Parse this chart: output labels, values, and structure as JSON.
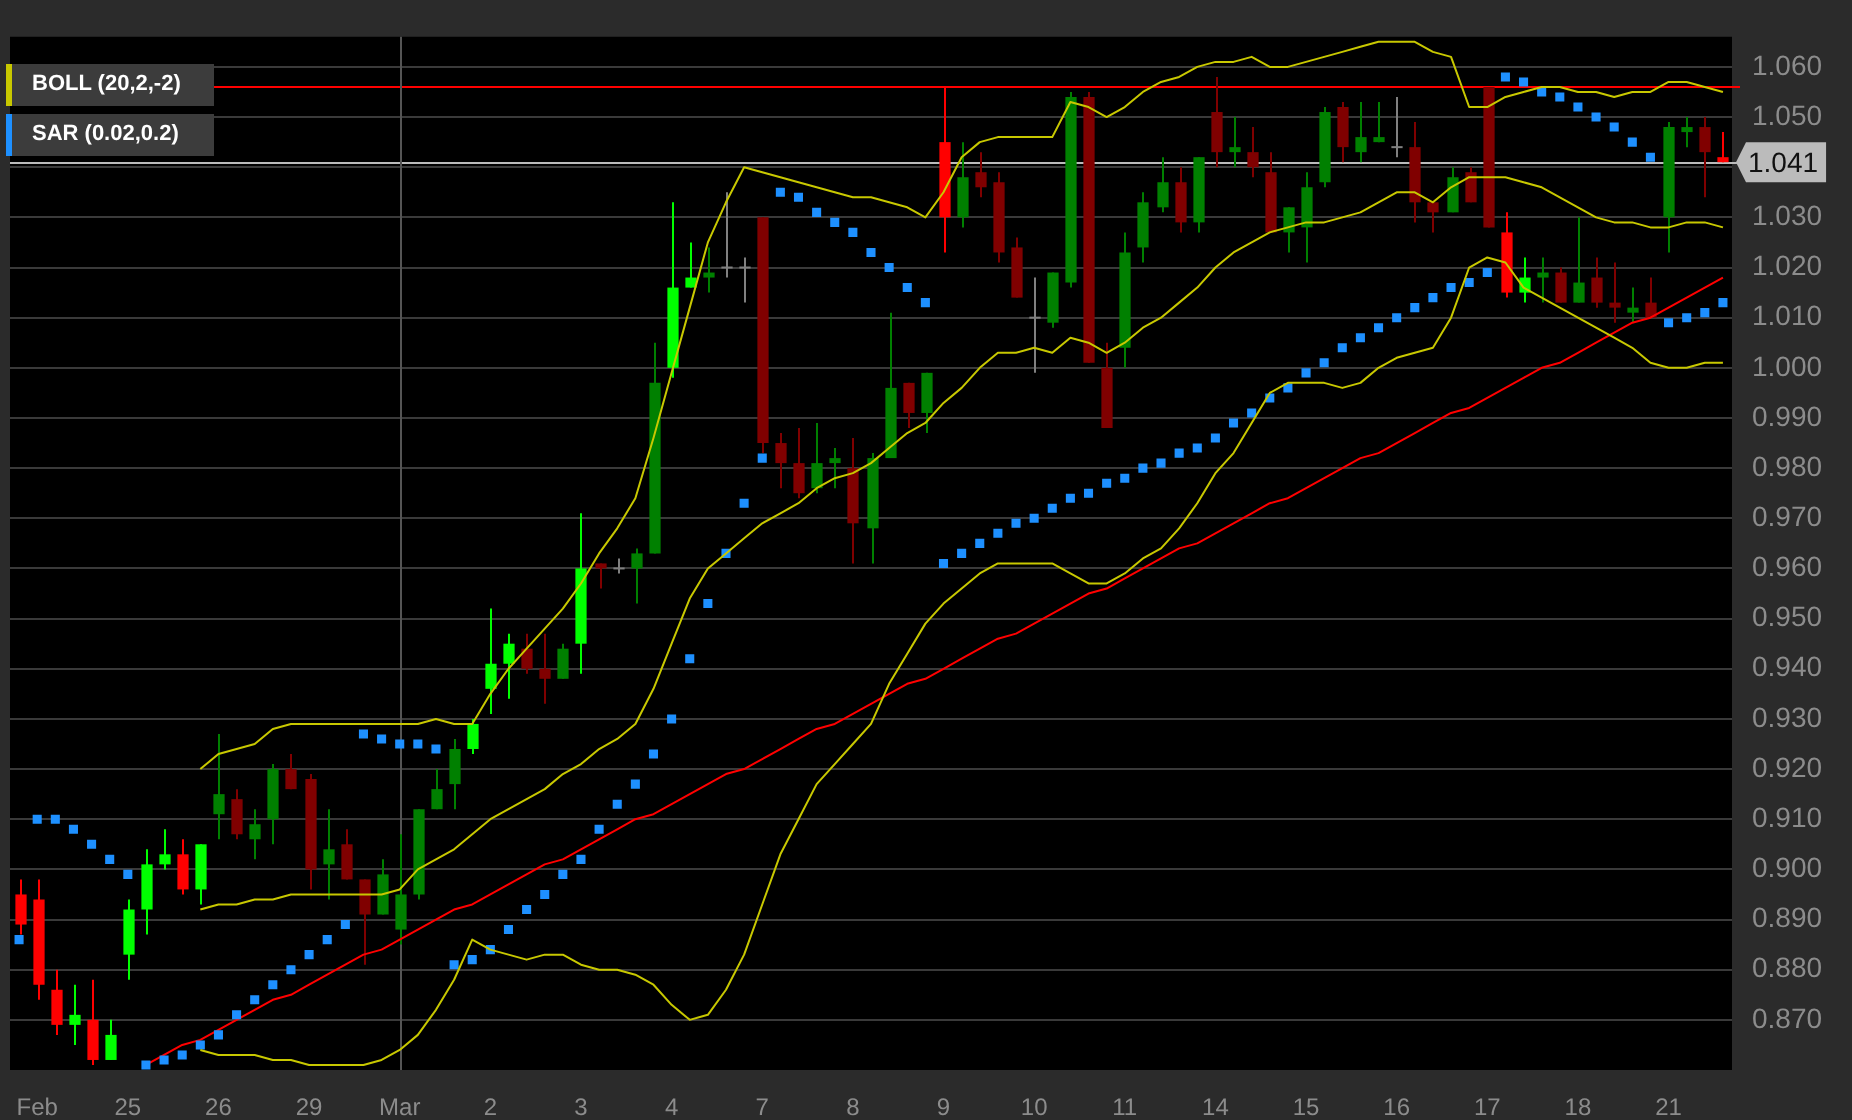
{
  "chart_data": {
    "type": "candlestick",
    "categories": [
      null,
      "Feb",
      null,
      null,
      null,
      null,
      "25",
      null,
      null,
      null,
      null,
      "26",
      null,
      null,
      null,
      null,
      "29",
      null,
      null,
      null,
      null,
      "Mar",
      null,
      null,
      null,
      null,
      "2",
      null,
      null,
      null,
      null,
      "3",
      null,
      null,
      null,
      null,
      "4",
      null,
      null,
      null,
      null,
      "7",
      null,
      null,
      null,
      null,
      "8",
      null,
      null,
      null,
      null,
      "9",
      null,
      null,
      null,
      null,
      "10",
      null,
      null,
      null,
      null,
      "11",
      null,
      null,
      null,
      null,
      "14",
      null,
      null,
      null,
      null,
      "15",
      null,
      null,
      null,
      null,
      "16",
      null,
      null,
      null,
      null,
      "17",
      null,
      null,
      null,
      null,
      "18",
      null,
      null,
      null,
      null,
      "21",
      null,
      null,
      null
    ],
    "ohlc": [
      [
        0.895,
        0.898,
        0.887,
        0.889
      ],
      [
        0.894,
        0.898,
        0.874,
        0.877
      ],
      [
        0.876,
        0.88,
        0.867,
        0.869
      ],
      [
        0.869,
        0.877,
        0.865,
        0.871
      ],
      [
        0.87,
        0.878,
        0.861,
        0.862
      ],
      [
        0.862,
        0.87,
        0.862,
        0.867
      ],
      [
        0.883,
        0.894,
        0.878,
        0.892
      ],
      [
        0.892,
        0.904,
        0.887,
        0.901
      ],
      [
        0.901,
        0.908,
        0.9,
        0.903
      ],
      [
        0.903,
        0.906,
        0.895,
        0.896
      ],
      [
        0.896,
        0.905,
        0.893,
        0.905
      ],
      [
        0.911,
        0.927,
        0.906,
        0.915
      ],
      [
        0.914,
        0.916,
        0.906,
        0.907
      ],
      [
        0.906,
        0.912,
        0.902,
        0.909
      ],
      [
        0.91,
        0.921,
        0.905,
        0.92
      ],
      [
        0.92,
        0.923,
        0.916,
        0.916
      ],
      [
        0.918,
        0.919,
        0.896,
        0.9
      ],
      [
        0.901,
        0.912,
        0.894,
        0.904
      ],
      [
        0.905,
        0.908,
        0.898,
        0.898
      ],
      [
        0.898,
        0.898,
        0.881,
        0.891
      ],
      [
        0.891,
        0.902,
        0.891,
        0.899
      ],
      [
        0.888,
        0.907,
        0.885,
        0.895
      ],
      [
        0.895,
        0.912,
        0.894,
        0.912
      ],
      [
        0.912,
        0.92,
        0.912,
        0.916
      ],
      [
        0.917,
        0.926,
        0.912,
        0.924
      ],
      [
        0.924,
        0.93,
        0.923,
        0.929
      ],
      [
        0.936,
        0.952,
        0.931,
        0.941
      ],
      [
        0.941,
        0.947,
        0.934,
        0.945
      ],
      [
        0.944,
        0.947,
        0.939,
        0.94
      ],
      [
        0.94,
        0.947,
        0.933,
        0.938
      ],
      [
        0.938,
        0.945,
        0.938,
        0.944
      ],
      [
        0.945,
        0.971,
        0.939,
        0.96
      ],
      [
        0.961,
        0.961,
        0.956,
        0.96
      ],
      [
        0.96,
        0.962,
        0.959,
        0.96
      ],
      [
        0.96,
        0.964,
        0.953,
        0.963
      ],
      [
        0.963,
        1.005,
        0.963,
        0.997
      ],
      [
        1.0,
        1.033,
        0.998,
        1.016
      ],
      [
        1.016,
        1.025,
        1.016,
        1.018
      ],
      [
        1.018,
        1.024,
        1.015,
        1.019
      ],
      [
        1.02,
        1.035,
        1.018,
        1.02
      ],
      [
        1.02,
        1.022,
        1.013,
        1.02
      ],
      [
        1.03,
        1.03,
        0.983,
        0.985
      ],
      [
        0.985,
        0.987,
        0.976,
        0.981
      ],
      [
        0.981,
        0.988,
        0.974,
        0.975
      ],
      [
        0.976,
        0.989,
        0.975,
        0.981
      ],
      [
        0.981,
        0.984,
        0.976,
        0.982
      ],
      [
        0.98,
        0.986,
        0.961,
        0.969
      ],
      [
        0.968,
        0.983,
        0.961,
        0.982
      ],
      [
        0.982,
        1.011,
        0.982,
        0.996
      ],
      [
        0.997,
        0.997,
        0.988,
        0.991
      ],
      [
        0.991,
        0.999,
        0.987,
        0.999
      ],
      [
        1.045,
        1.056,
        1.023,
        1.03
      ],
      [
        1.03,
        1.045,
        1.028,
        1.038
      ],
      [
        1.039,
        1.043,
        1.034,
        1.036
      ],
      [
        1.037,
        1.039,
        1.021,
        1.023
      ],
      [
        1.024,
        1.026,
        1.014,
        1.014
      ],
      [
        1.01,
        1.018,
        0.999,
        1.01
      ],
      [
        1.009,
        1.019,
        1.008,
        1.019
      ],
      [
        1.017,
        1.055,
        1.016,
        1.054
      ],
      [
        1.054,
        1.055,
        1.001,
        1.001
      ],
      [
        1.0,
        1.005,
        0.988,
        0.988
      ],
      [
        1.004,
        1.027,
        1.0,
        1.023
      ],
      [
        1.024,
        1.035,
        1.021,
        1.033
      ],
      [
        1.032,
        1.042,
        1.031,
        1.037
      ],
      [
        1.037,
        1.04,
        1.027,
        1.029
      ],
      [
        1.029,
        1.042,
        1.027,
        1.042
      ],
      [
        1.051,
        1.058,
        1.04,
        1.043
      ],
      [
        1.043,
        1.05,
        1.04,
        1.044
      ],
      [
        1.043,
        1.048,
        1.038,
        1.04
      ],
      [
        1.039,
        1.043,
        1.027,
        1.027
      ],
      [
        1.027,
        1.032,
        1.023,
        1.032
      ],
      [
        1.028,
        1.039,
        1.021,
        1.036
      ],
      [
        1.037,
        1.052,
        1.036,
        1.051
      ],
      [
        1.052,
        1.053,
        1.041,
        1.044
      ],
      [
        1.043,
        1.053,
        1.041,
        1.046
      ],
      [
        1.045,
        1.053,
        1.045,
        1.046
      ],
      [
        1.044,
        1.054,
        1.042,
        1.044
      ],
      [
        1.044,
        1.049,
        1.029,
        1.033
      ],
      [
        1.033,
        1.033,
        1.027,
        1.031
      ],
      [
        1.031,
        1.04,
        1.031,
        1.038
      ],
      [
        1.039,
        1.04,
        1.033,
        1.033
      ],
      [
        1.056,
        1.056,
        1.028,
        1.028
      ],
      [
        1.027,
        1.031,
        1.014,
        1.015
      ],
      [
        1.015,
        1.022,
        1.013,
        1.018
      ],
      [
        1.018,
        1.022,
        1.013,
        1.019
      ],
      [
        1.019,
        1.02,
        1.013,
        1.013
      ],
      [
        1.013,
        1.03,
        1.013,
        1.017
      ],
      [
        1.018,
        1.022,
        1.012,
        1.013
      ],
      [
        1.013,
        1.021,
        1.009,
        1.012
      ],
      [
        1.011,
        1.016,
        1.009,
        1.012
      ],
      [
        1.013,
        1.018,
        1.01,
        1.01
      ],
      [
        1.03,
        1.049,
        1.023,
        1.048
      ],
      [
        1.047,
        1.05,
        1.044,
        1.048
      ],
      [
        1.048,
        1.05,
        1.034,
        1.043
      ],
      [
        1.042,
        1.047,
        1.041,
        1.041
      ]
    ],
    "colors": [
      "#ff0000",
      "#ff0000",
      "#ff0000",
      "#00ff00",
      "#ff0000",
      "#00ff00",
      "#00ff00",
      "#00ff00",
      "#00ff00",
      "#ff0000",
      "#00ff00",
      "#008000",
      "#800000",
      "#008000",
      "#008000",
      "#800000",
      "#800000",
      "#008000",
      "#800000",
      "#800000",
      "#008000",
      "#008000",
      "#008000",
      "#008000",
      "#008000",
      "#00ff00",
      "#00ff00",
      "#00ff00",
      "#800000",
      "#800000",
      "#008000",
      "#00ff00",
      "#800000",
      "#808080",
      "#008000",
      "#008000",
      "#00ff00",
      "#00ff00",
      "#008000",
      "#808080",
      "#808080",
      "#800000",
      "#800000",
      "#800000",
      "#008000",
      "#008000",
      "#800000",
      "#008000",
      "#008000",
      "#800000",
      "#008000",
      "#ff0000",
      "#008000",
      "#800000",
      "#800000",
      "#800000",
      "#808080",
      "#008000",
      "#008000",
      "#800000",
      "#800000",
      "#008000",
      "#008000",
      "#008000",
      "#800000",
      "#008000",
      "#800000",
      "#008000",
      "#800000",
      "#800000",
      "#008000",
      "#008000",
      "#008000",
      "#800000",
      "#008000",
      "#008000",
      "#808080",
      "#800000",
      "#800000",
      "#008000",
      "#800000",
      "#800000",
      "#ff0000",
      "#00ff00",
      "#008000",
      "#800000",
      "#008000",
      "#800000",
      "#800000",
      "#008000",
      "#800000",
      "#008000",
      "#008000",
      "#800000",
      "#ff0000"
    ],
    "series": [
      {
        "type": "line",
        "color": "#c8c800",
        "values": [
          null,
          null,
          null,
          null,
          null,
          null,
          null,
          null,
          null,
          null,
          0.92,
          0.923,
          0.924,
          0.925,
          0.928,
          0.929,
          0.929,
          0.929,
          0.929,
          0.929,
          0.929,
          0.929,
          0.929,
          0.93,
          0.929,
          0.929,
          0.935,
          0.94,
          0.944,
          0.948,
          0.952,
          0.957,
          0.963,
          0.968,
          0.974,
          0.986,
          0.999,
          1.012,
          1.025,
          1.033,
          1.04,
          1.039,
          1.038,
          1.037,
          1.036,
          1.035,
          1.034,
          1.034,
          1.033,
          1.032,
          1.03,
          1.035,
          1.042,
          1.045,
          1.046,
          1.046,
          1.046,
          1.046,
          1.053,
          1.052,
          1.05,
          1.052,
          1.055,
          1.057,
          1.058,
          1.06,
          1.061,
          1.061,
          1.062,
          1.06,
          1.06,
          1.061,
          1.062,
          1.063,
          1.064,
          1.065,
          1.065,
          1.065,
          1.063,
          1.062,
          1.052,
          1.052,
          1.054,
          1.055,
          1.056,
          1.056,
          1.055,
          1.055,
          1.054,
          1.055,
          1.055,
          1.057,
          1.057,
          1.056,
          1.055
        ]
      },
      {
        "type": "line",
        "name": "BOLL (20,2,-2)",
        "color": "#c8c800",
        "values": [
          null,
          null,
          null,
          null,
          null,
          null,
          null,
          null,
          null,
          null,
          0.892,
          0.893,
          0.893,
          0.894,
          0.894,
          0.895,
          0.895,
          0.895,
          0.895,
          0.895,
          0.895,
          0.896,
          0.9,
          0.902,
          0.904,
          0.907,
          0.91,
          0.912,
          0.914,
          0.916,
          0.919,
          0.921,
          0.924,
          0.926,
          0.929,
          0.936,
          0.945,
          0.954,
          0.96,
          0.963,
          0.966,
          0.969,
          0.971,
          0.973,
          0.976,
          0.978,
          0.979,
          0.981,
          0.984,
          0.987,
          0.989,
          0.993,
          0.996,
          1.0,
          1.003,
          1.003,
          1.004,
          1.003,
          1.006,
          1.005,
          1.003,
          1.005,
          1.008,
          1.01,
          1.013,
          1.016,
          1.02,
          1.023,
          1.025,
          1.027,
          1.028,
          1.029,
          1.029,
          1.03,
          1.031,
          1.033,
          1.035,
          1.035,
          1.033,
          1.036,
          1.038,
          1.038,
          1.038,
          1.037,
          1.036,
          1.034,
          1.032,
          1.03,
          1.029,
          1.029,
          1.028,
          1.028,
          1.029,
          1.029,
          1.028
        ]
      },
      {
        "type": "line",
        "color": "#c8c800",
        "values": [
          null,
          null,
          null,
          null,
          null,
          null,
          null,
          null,
          null,
          null,
          0.864,
          0.863,
          0.863,
          0.863,
          0.862,
          0.862,
          0.861,
          0.861,
          0.861,
          0.861,
          0.862,
          0.864,
          0.867,
          0.872,
          0.878,
          0.886,
          0.884,
          0.883,
          0.882,
          0.883,
          0.883,
          0.881,
          0.88,
          0.88,
          0.879,
          0.877,
          0.873,
          0.87,
          0.871,
          0.876,
          0.883,
          0.893,
          0.903,
          0.91,
          0.917,
          0.921,
          0.925,
          0.929,
          0.937,
          0.943,
          0.949,
          0.953,
          0.956,
          0.959,
          0.961,
          0.961,
          0.961,
          0.961,
          0.959,
          0.957,
          0.957,
          0.959,
          0.962,
          0.964,
          0.968,
          0.973,
          0.979,
          0.983,
          0.989,
          0.995,
          0.997,
          0.997,
          0.997,
          0.996,
          0.997,
          1.0,
          1.002,
          1.003,
          1.004,
          1.01,
          1.02,
          1.022,
          1.021,
          1.016,
          1.014,
          1.012,
          1.01,
          1.008,
          1.006,
          1.004,
          1.001,
          1.0,
          1.0,
          1.001,
          1.001
        ]
      },
      {
        "type": "scatter",
        "name": "SAR (0.02,0.2)",
        "color": "#1e90ff",
        "marker": "square",
        "values": [
          0.886,
          0.91,
          0.91,
          0.908,
          0.905,
          0.902,
          0.899,
          0.861,
          0.862,
          0.863,
          0.865,
          0.867,
          0.871,
          0.874,
          0.877,
          0.88,
          0.883,
          0.886,
          0.889,
          0.927,
          0.926,
          0.925,
          0.925,
          0.924,
          0.881,
          0.882,
          0.884,
          0.888,
          0.892,
          0.895,
          0.899,
          0.902,
          0.908,
          0.913,
          0.917,
          0.923,
          0.93,
          0.942,
          0.953,
          0.963,
          0.973,
          0.982,
          1.035,
          1.034,
          1.031,
          1.029,
          1.027,
          1.023,
          1.02,
          1.016,
          1.013,
          0.961,
          0.963,
          0.965,
          0.967,
          0.969,
          0.97,
          0.972,
          0.974,
          0.975,
          0.977,
          0.978,
          0.98,
          0.981,
          0.983,
          0.984,
          0.986,
          0.989,
          0.991,
          0.994,
          0.996,
          0.999,
          1.001,
          1.004,
          1.006,
          1.008,
          1.01,
          1.012,
          1.014,
          1.016,
          1.017,
          1.019,
          1.058,
          1.057,
          1.055,
          1.054,
          1.052,
          1.05,
          1.048,
          1.045,
          1.042,
          1.009,
          1.01,
          1.011,
          1.013
        ]
      },
      {
        "type": "line",
        "color": "#ff0000",
        "values": [
          null,
          null,
          null,
          null,
          null,
          null,
          null,
          0.861,
          0.863,
          0.865,
          0.866,
          0.868,
          0.87,
          0.872,
          0.874,
          0.875,
          0.877,
          0.879,
          0.881,
          0.883,
          0.884,
          0.886,
          0.888,
          0.89,
          0.892,
          0.893,
          0.895,
          0.897,
          0.899,
          0.901,
          0.902,
          0.904,
          0.906,
          0.908,
          0.91,
          0.911,
          0.913,
          0.915,
          0.917,
          0.919,
          0.92,
          0.922,
          0.924,
          0.926,
          0.928,
          0.929,
          0.931,
          0.933,
          0.935,
          0.937,
          0.938,
          0.94,
          0.942,
          0.944,
          0.946,
          0.947,
          0.949,
          0.951,
          0.953,
          0.955,
          0.956,
          0.958,
          0.96,
          0.962,
          0.964,
          0.965,
          0.967,
          0.969,
          0.971,
          0.973,
          0.974,
          0.976,
          0.978,
          0.98,
          0.982,
          0.983,
          0.985,
          0.987,
          0.989,
          0.991,
          0.992,
          0.994,
          0.996,
          0.998,
          1.0,
          1.001,
          1.003,
          1.005,
          1.007,
          1.009,
          1.01,
          1.012,
          1.014,
          1.016,
          1.018
        ]
      }
    ],
    "ylim": [
      0.86,
      1.066
    ],
    "yticks": [
      {
        "value": 0.87,
        "label": "0.870"
      },
      {
        "value": 0.88,
        "label": "0.880"
      },
      {
        "value": 0.89,
        "label": "0.890"
      },
      {
        "value": 0.9,
        "label": "0.900"
      },
      {
        "value": 0.91,
        "label": "0.910"
      },
      {
        "value": 0.92,
        "label": "0.920"
      },
      {
        "value": 0.93,
        "label": "0.930"
      },
      {
        "value": 0.94,
        "label": "0.940"
      },
      {
        "value": 0.95,
        "label": "0.950"
      },
      {
        "value": 0.96,
        "label": "0.960"
      },
      {
        "value": 0.97,
        "label": "0.970"
      },
      {
        "value": 0.98,
        "label": "0.980"
      },
      {
        "value": 0.99,
        "label": "0.990"
      },
      {
        "value": 1.0,
        "label": "1.000"
      },
      {
        "value": 1.01,
        "label": "1.010"
      },
      {
        "value": 1.02,
        "label": "1.020"
      },
      {
        "value": 1.03,
        "label": "1.030"
      },
      {
        "value": 1.04,
        "label": null
      },
      {
        "value": 1.05,
        "label": "1.050"
      },
      {
        "value": 1.06,
        "label": "1.060"
      }
    ],
    "ref_lines": [
      {
        "axis": "y",
        "value": 1.056,
        "color": "#ff0000"
      },
      {
        "axis": "y",
        "value": 1.041,
        "label": "1.041",
        "color": "#bbbbbb"
      },
      {
        "axis": "x",
        "value": "Mar",
        "color": "#555555"
      }
    ],
    "grid": "y",
    "legend": "top left"
  }
}
